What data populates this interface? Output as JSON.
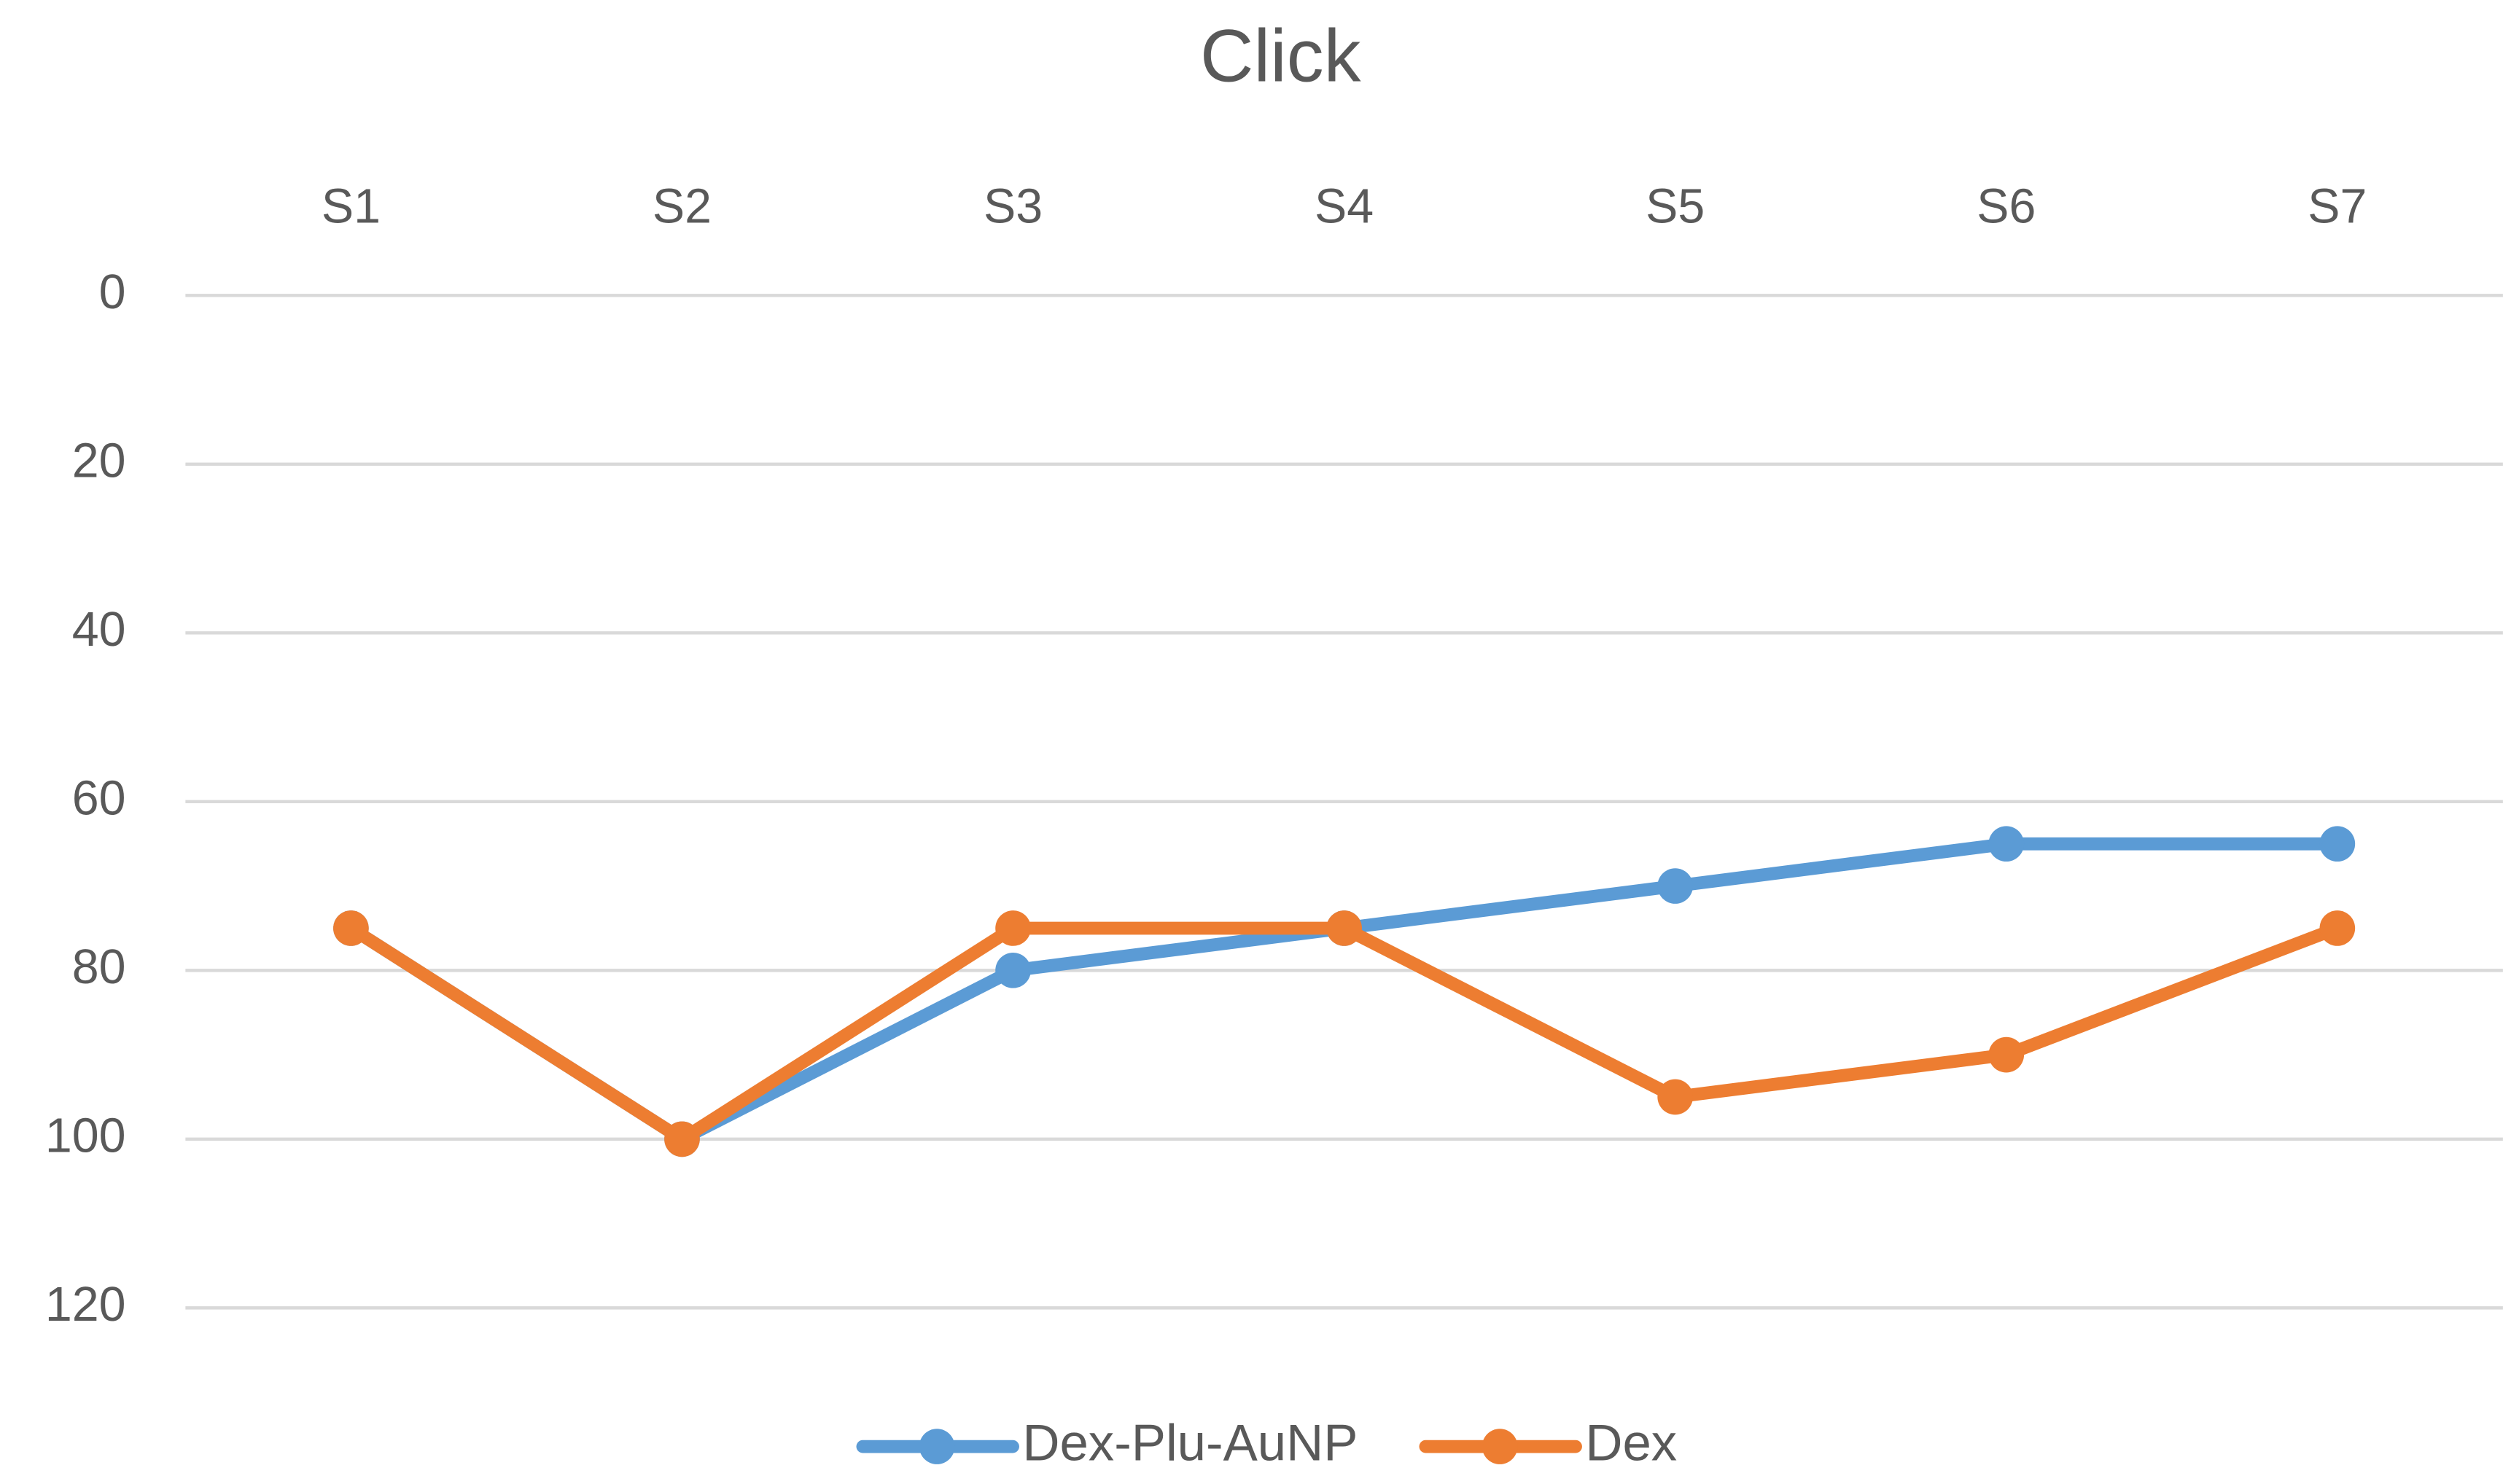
{
  "chart_data": {
    "type": "line",
    "title": "Click",
    "categories": [
      "S1",
      "S2",
      "S3",
      "S4",
      "S5",
      "S6",
      "S7"
    ],
    "series": [
      {
        "name": "Dex-Plu-AuNP",
        "color": "#5b9bd5",
        "values": [
          75,
          100,
          80,
          75,
          70,
          65,
          65
        ]
      },
      {
        "name": "Dex",
        "color": "#ed7d31",
        "values": [
          75,
          100,
          75,
          75,
          95,
          90,
          75
        ]
      }
    ],
    "ylim": [
      0,
      120
    ],
    "yticks": [
      0,
      20,
      40,
      60,
      80,
      100,
      120
    ],
    "y_reversed": true,
    "x_axis_position": "top",
    "grid": true,
    "legend": "bottom"
  }
}
